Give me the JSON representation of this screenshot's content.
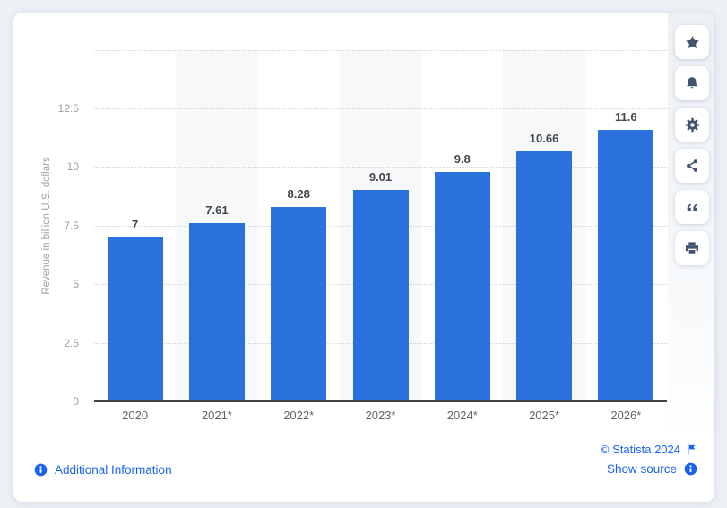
{
  "colors": {
    "bar_blue": "#2b71de",
    "link_blue": "#1a63f2",
    "toolbar_icon": "#41536e",
    "page_background": "#edf0f5",
    "card_background": "#ffffff",
    "column_stripe": "#f7f8fa",
    "gridline": "#d0d3d7",
    "axis_line": "#3f4349",
    "value_label": "#43474b",
    "x_tick_label": "#60646a",
    "y_tick_label": "#9aa0a7"
  },
  "chart_data": {
    "type": "bar",
    "title": "",
    "categories": [
      "2020",
      "2021*",
      "2022*",
      "2023*",
      "2024*",
      "2025*",
      "2026*"
    ],
    "values": [
      7,
      7.61,
      8.28,
      9.01,
      9.8,
      10.66,
      11.6
    ],
    "value_labels": [
      "7",
      "7.61",
      "8.28",
      "9.01",
      "9.8",
      "10.66",
      "11.6"
    ],
    "xlabel": "",
    "ylabel": "Revenue in billion U.S. dollars",
    "ylim": [
      0,
      15
    ],
    "ytick_interval": 2.5,
    "ytick_labels": [
      "0",
      "2.5",
      "5",
      "7.5",
      "10",
      "12.5"
    ],
    "grid": "horizontal-dotted",
    "legend": "none",
    "striped_columns": [
      1,
      3,
      5
    ]
  },
  "toolbar": {
    "buttons": [
      {
        "name": "favorite",
        "icon": "star-icon"
      },
      {
        "name": "alerts",
        "icon": "bell-icon"
      },
      {
        "name": "settings",
        "icon": "gear-icon"
      },
      {
        "name": "share",
        "icon": "share-icon"
      },
      {
        "name": "cite",
        "icon": "quote-icon"
      },
      {
        "name": "print",
        "icon": "printer-icon"
      }
    ]
  },
  "footer": {
    "additional_information_label": "Additional Information",
    "additional_information_icon": "info-icon",
    "copyright_label": "© Statista 2024",
    "copyright_icon": "flag-icon",
    "show_source_label": "Show source",
    "show_source_icon": "info-icon"
  }
}
